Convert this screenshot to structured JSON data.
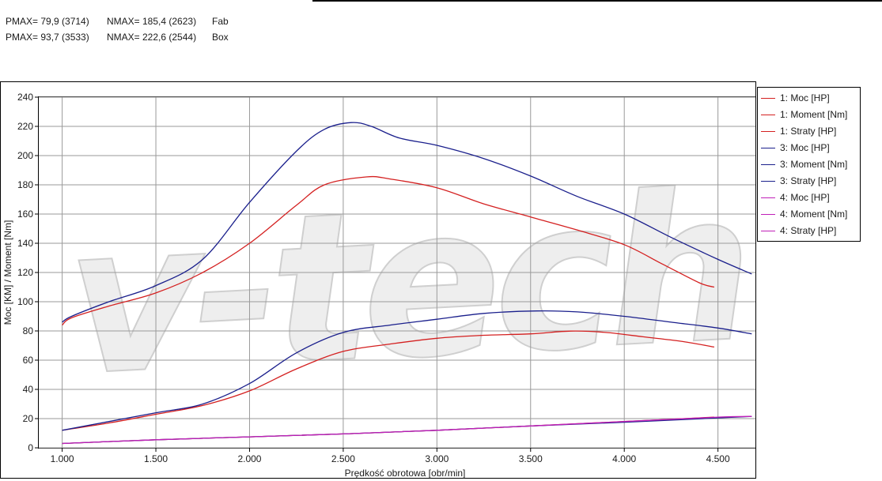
{
  "header": {
    "rows": [
      {
        "pmax": "PMAX= 79,9 (3714)",
        "nmax": "NMAX= 185,4 (2623)",
        "label": "Fab"
      },
      {
        "pmax": "PMAX= 93,7 (3533)",
        "nmax": "NMAX= 222,6 (2544)",
        "label": "Box"
      }
    ]
  },
  "watermark": {
    "text": "v-tech"
  },
  "colors": {
    "series1": "#d42020",
    "series3": "#1a1f8c",
    "series4": "#c020b8"
  },
  "chart_data": {
    "type": "line",
    "title": "",
    "xlabel": "Prędkość obrotowa [obr/min]",
    "ylabel": "Moc [KM] / Moment [Nm]",
    "xlim": [
      875,
      4700
    ],
    "ylim": [
      0,
      240
    ],
    "xticks": [
      1000,
      1500,
      2000,
      2500,
      3000,
      3500,
      4000,
      4500
    ],
    "xtick_labels": [
      "1.000",
      "1.500",
      "2.000",
      "2.500",
      "3.000",
      "3.500",
      "4.000",
      "4.500"
    ],
    "yticks": [
      0,
      20,
      40,
      60,
      80,
      100,
      120,
      140,
      160,
      180,
      200,
      220,
      240
    ],
    "ytick_labels": [
      "0",
      "20",
      "40",
      "60",
      "80",
      "100",
      "120",
      "140",
      "160",
      "180",
      "200",
      "220",
      "240"
    ],
    "grid": true,
    "legend_position": "right",
    "series": [
      {
        "name": "1: Moc [HP]",
        "color": "#d42020",
        "x": [
          1000,
          1250,
          1500,
          1750,
          2000,
          2250,
          2500,
          2750,
          3000,
          3250,
          3500,
          3714,
          3900,
          4100,
          4300,
          4480
        ],
        "y": [
          12,
          17,
          23,
          29,
          39,
          54,
          66,
          71,
          75,
          77,
          78,
          79.9,
          79,
          76,
          73,
          69
        ]
      },
      {
        "name": "1: Moment [Nm]",
        "color": "#d42020",
        "x": [
          1000,
          1050,
          1250,
          1500,
          1750,
          2000,
          2250,
          2400,
          2623,
          2750,
          3000,
          3250,
          3500,
          3750,
          4000,
          4200,
          4400,
          4480
        ],
        "y": [
          84,
          89,
          97,
          106,
          120,
          140,
          166,
          180,
          185.4,
          184,
          178,
          167,
          158,
          149,
          139,
          126,
          113,
          110
        ]
      },
      {
        "name": "1: Straty [HP]",
        "color": "#d42020",
        "x": [
          1000,
          1500,
          2000,
          2500,
          3000,
          3500,
          4000,
          4480
        ],
        "y": [
          3,
          5.5,
          7.5,
          9.5,
          12,
          15,
          18,
          21
        ]
      },
      {
        "name": "3: Moc [HP]",
        "color": "#1a1f8c",
        "x": [
          1000,
          1250,
          1500,
          1750,
          2000,
          2250,
          2500,
          2750,
          3000,
          3250,
          3533,
          3750,
          4000,
          4250,
          4500,
          4680
        ],
        "y": [
          12,
          18,
          24,
          30,
          44,
          65,
          79,
          84,
          88,
          92,
          93.7,
          93,
          90,
          86,
          82,
          78
        ]
      },
      {
        "name": "3: Moment [Nm]",
        "color": "#1a1f8c",
        "x": [
          1000,
          1050,
          1250,
          1500,
          1750,
          2000,
          2250,
          2400,
          2544,
          2650,
          2800,
          3000,
          3250,
          3500,
          3750,
          4000,
          4250,
          4500,
          4680
        ],
        "y": [
          86,
          90,
          100,
          111,
          129,
          168,
          203,
          218,
          222.6,
          220,
          212,
          207,
          198,
          186,
          172,
          160,
          144,
          129,
          119
        ]
      },
      {
        "name": "3: Straty [HP]",
        "color": "#1a1f8c",
        "x": [
          1000,
          1500,
          2000,
          2500,
          3000,
          3500,
          4000,
          4500,
          4680
        ],
        "y": [
          3,
          5.5,
          7.5,
          9.5,
          12,
          15,
          17.5,
          20.5,
          21.5
        ]
      },
      {
        "name": "4: Moc [HP]",
        "color": "#c020b8",
        "x": [],
        "y": []
      },
      {
        "name": "4: Moment [Nm]",
        "color": "#c020b8",
        "x": [],
        "y": []
      },
      {
        "name": "4: Straty [HP]",
        "color": "#c020b8",
        "x": [
          1000,
          1500,
          2000,
          2500,
          3000,
          3500,
          4000,
          4500,
          4680
        ],
        "y": [
          3,
          5.5,
          7.5,
          9.5,
          12,
          15,
          18,
          21,
          21.5
        ]
      }
    ]
  }
}
